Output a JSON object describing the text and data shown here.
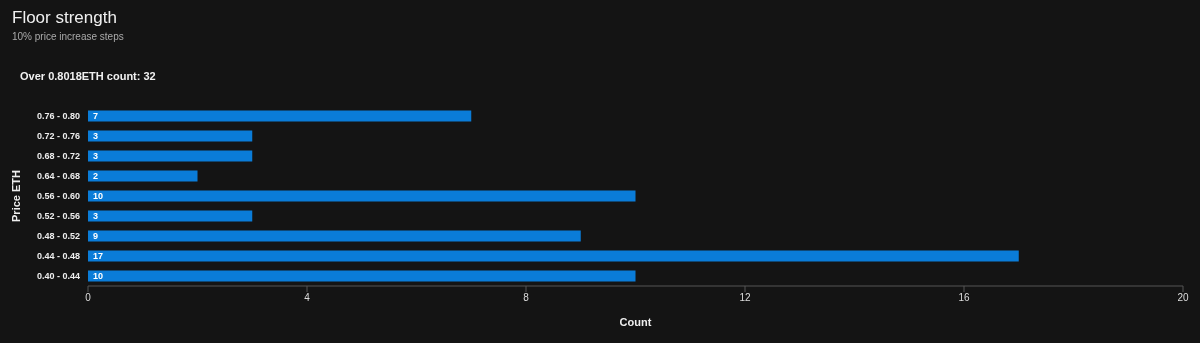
{
  "chart_data": {
    "type": "bar",
    "orientation": "horizontal",
    "title": "Floor strength",
    "subtitle": "10% price increase steps",
    "annotations": [
      "Over 0.8018ETH count: 32"
    ],
    "xlabel": "Count",
    "ylabel": "Price ETH",
    "categories": [
      "0.76 - 0.80",
      "0.72 - 0.76",
      "0.68 - 0.72",
      "0.64 - 0.68",
      "0.56 - 0.60",
      "0.52 - 0.56",
      "0.48 - 0.52",
      "0.44 - 0.48",
      "0.40 - 0.44"
    ],
    "values": [
      7,
      3,
      3,
      2,
      10,
      3,
      9,
      17,
      10
    ],
    "color": "#0a7cd8",
    "xlim": [
      0,
      20
    ],
    "xticks": [
      0,
      4,
      8,
      12,
      16,
      20
    ],
    "data_labels": true
  }
}
